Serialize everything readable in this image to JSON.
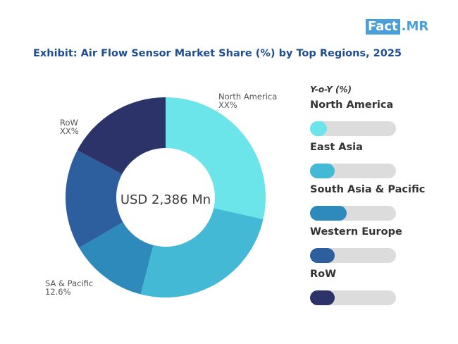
{
  "brand": {
    "part1": "Fact",
    "part2": ".MR"
  },
  "chart_data": {
    "type": "pie",
    "title": "Exhibit:  Air Flow Sensor Market Share (%) by Top Regions, 2025",
    "center_label": "USD 2,386 Mn",
    "slices": [
      {
        "name": "North America",
        "value": 28.5,
        "label": "North America",
        "value_label": "XX%",
        "color": "#6ce5ea"
      },
      {
        "name": "East Asia",
        "value": 25.5,
        "label": "",
        "value_label": "",
        "color": "#43b9d6"
      },
      {
        "name": "South Asia & Pacific",
        "value": 12.6,
        "label": "SA & Pacific",
        "value_label": "12.6%",
        "color": "#2e8abb"
      },
      {
        "name": "Western Europe",
        "value": 16.2,
        "label": "",
        "value_label": "",
        "color": "#2d5f9e"
      },
      {
        "name": "RoW",
        "value": 17.2,
        "label": "RoW",
        "value_label": "XX%",
        "color": "#2b3368"
      }
    ],
    "yoy": {
      "title": "Y-o-Y (%)",
      "items": [
        {
          "name": "North America",
          "fill": 0.2,
          "color": "#6ce5ea"
        },
        {
          "name": "East Asia",
          "fill": 0.29,
          "color": "#43b9d6"
        },
        {
          "name": "South Asia & Pacific",
          "fill": 0.43,
          "color": "#2e8abb"
        },
        {
          "name": "Western Europe",
          "fill": 0.29,
          "color": "#2d5f9e"
        },
        {
          "name": "RoW",
          "fill": 0.29,
          "color": "#2b3368"
        }
      ]
    }
  }
}
